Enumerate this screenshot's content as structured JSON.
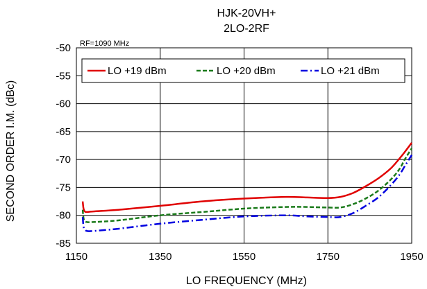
{
  "chart_data": {
    "type": "line",
    "title": "HJK-20VH+",
    "subtitle": "2LO-2RF",
    "annotation": "RF=1090 MHz",
    "xlabel": "LO FREQUENCY (MHz)",
    "ylabel": "SECOND ORDER I.M. (dBc)",
    "xlim": [
      1150,
      1950
    ],
    "ylim": [
      -85,
      -50
    ],
    "xticks": [
      1150,
      1350,
      1550,
      1750,
      1950
    ],
    "yticks": [
      -50,
      -55,
      -60,
      -65,
      -70,
      -75,
      -80,
      -85
    ],
    "grid": true,
    "legend_position": "top",
    "series": [
      {
        "name": "LO +19 dBm",
        "color": "#e00000",
        "dash": "solid",
        "x": [
          1165,
          1167,
          1170,
          1175,
          1190,
          1250,
          1350,
          1450,
          1550,
          1650,
          1700,
          1750,
          1780,
          1810,
          1840,
          1870,
          1900,
          1920,
          1935,
          1950
        ],
        "y": [
          -77.5,
          -78.8,
          -79.3,
          -79.4,
          -79.3,
          -79.0,
          -78.3,
          -77.5,
          -77.0,
          -76.7,
          -76.8,
          -76.9,
          -76.7,
          -76.0,
          -74.8,
          -73.4,
          -71.6,
          -69.9,
          -68.5,
          -67.0
        ]
      },
      {
        "name": "LO +20 dBm",
        "color": "#1a7a1a",
        "dash": "dash",
        "x": [
          1165,
          1167,
          1170,
          1175,
          1190,
          1250,
          1350,
          1450,
          1550,
          1650,
          1700,
          1750,
          1780,
          1810,
          1840,
          1870,
          1900,
          1920,
          1935,
          1950
        ],
        "y": [
          -79.0,
          -80.5,
          -81.0,
          -81.2,
          -81.2,
          -80.9,
          -80.0,
          -79.4,
          -78.8,
          -78.5,
          -78.5,
          -78.6,
          -78.6,
          -78.0,
          -77.0,
          -75.6,
          -73.6,
          -71.8,
          -69.8,
          -68.0
        ]
      },
      {
        "name": "LO +21 dBm",
        "color": "#0000e0",
        "dash": "dashdot",
        "x": [
          1165,
          1167,
          1170,
          1175,
          1190,
          1250,
          1350,
          1450,
          1550,
          1650,
          1700,
          1750,
          1780,
          1810,
          1840,
          1870,
          1900,
          1920,
          1935,
          1950
        ],
        "y": [
          -80.3,
          -82.0,
          -82.5,
          -82.8,
          -82.8,
          -82.4,
          -81.5,
          -80.8,
          -80.2,
          -80.0,
          -80.2,
          -80.3,
          -80.3,
          -79.6,
          -78.3,
          -76.8,
          -74.6,
          -72.8,
          -71.0,
          -69.2
        ]
      }
    ]
  }
}
